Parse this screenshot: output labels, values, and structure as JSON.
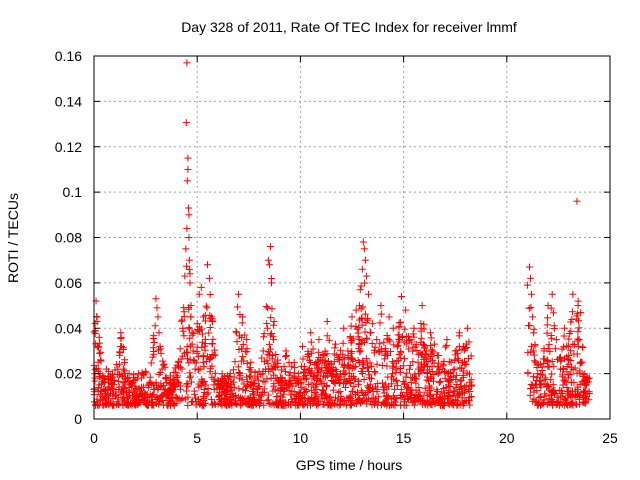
{
  "chart_data": {
    "type": "scatter",
    "title": "Day 328 of 2011, Rate Of TEC Index for receiver lmmf",
    "xlabel": "GPS time / hours",
    "ylabel": "ROTI / TECUs",
    "xlim": [
      0,
      25
    ],
    "ylim": [
      0,
      0.16
    ],
    "xticks": [
      "0",
      "5",
      "10",
      "15",
      "20",
      "25"
    ],
    "yticks": [
      "0",
      "0.02",
      "0.04",
      "0.06",
      "0.08",
      "0.1",
      "0.12",
      "0.14",
      "0.16"
    ],
    "grid": true,
    "marker": "+",
    "color": "#ff0000",
    "coverage": [
      [
        0,
        18.3
      ],
      [
        21.0,
        24.0
      ]
    ],
    "series": [
      {
        "x": [
          0.0,
          0.05,
          0.1,
          0.15,
          0.2,
          0.25,
          0.3,
          0.35,
          0.4,
          0.5,
          0.6,
          0.7,
          0.8,
          0.9,
          1.0,
          1.1,
          1.2,
          1.3,
          1.5,
          1.7,
          1.9,
          2.1,
          2.3,
          2.5,
          2.7,
          2.9,
          3.0,
          3.05,
          3.1,
          3.15,
          3.2,
          3.3,
          3.5,
          3.7,
          3.9,
          4.1,
          4.3,
          4.4,
          4.45,
          4.5,
          4.5,
          4.52,
          4.55,
          4.55,
          4.58,
          4.6,
          4.6,
          4.62,
          4.65,
          4.65,
          4.7,
          4.7,
          4.75,
          4.8,
          4.9,
          5.0,
          5.1,
          5.2,
          5.3,
          5.4,
          5.5,
          5.6,
          5.7,
          5.8,
          6.0,
          6.2,
          6.4,
          6.6,
          6.8,
          7.0,
          7.2,
          7.4,
          7.6,
          7.8,
          8.0,
          8.2,
          8.4,
          8.45,
          8.5,
          8.55,
          8.6,
          8.7,
          8.9,
          9.1,
          9.3,
          9.5,
          9.7,
          9.9,
          10.1,
          10.3,
          10.5,
          10.7,
          10.9,
          11.1,
          11.3,
          11.5,
          11.7,
          11.9,
          12.1,
          12.3,
          12.5,
          12.7,
          12.9,
          13.0,
          13.05,
          13.1,
          13.15,
          13.2,
          13.3,
          13.5,
          13.7,
          13.9,
          14.1,
          14.3,
          14.5,
          14.7,
          14.9,
          15.1,
          15.3,
          15.5,
          15.7,
          15.9,
          16.1,
          16.3,
          16.5,
          16.7,
          16.9,
          17.1,
          17.3,
          17.5,
          17.7,
          17.9,
          18.1,
          18.3,
          21.0,
          21.1,
          21.15,
          21.2,
          21.25,
          21.3,
          21.4,
          21.5,
          21.6,
          21.8,
          22.0,
          22.2,
          22.4,
          22.6,
          22.8,
          23.0,
          23.2,
          23.4,
          23.45,
          23.5,
          23.6,
          23.8,
          24.0
        ],
        "y": [
          0.013,
          0.018,
          0.052,
          0.043,
          0.025,
          0.015,
          0.02,
          0.012,
          0.01,
          0.016,
          0.022,
          0.014,
          0.019,
          0.011,
          0.017,
          0.024,
          0.013,
          0.038,
          0.015,
          0.02,
          0.012,
          0.018,
          0.014,
          0.021,
          0.016,
          0.013,
          0.053,
          0.049,
          0.045,
          0.038,
          0.032,
          0.022,
          0.016,
          0.019,
          0.014,
          0.025,
          0.04,
          0.063,
          0.075,
          0.084,
          0.157,
          0.105,
          0.115,
          0.11,
          0.093,
          0.09,
          0.08,
          0.07,
          0.064,
          0.06,
          0.05,
          0.045,
          0.038,
          0.03,
          0.022,
          0.042,
          0.055,
          0.058,
          0.045,
          0.035,
          0.068,
          0.062,
          0.045,
          0.028,
          0.017,
          0.015,
          0.012,
          0.02,
          0.014,
          0.055,
          0.045,
          0.035,
          0.025,
          0.018,
          0.021,
          0.03,
          0.04,
          0.07,
          0.068,
          0.076,
          0.06,
          0.035,
          0.023,
          0.018,
          0.03,
          0.015,
          0.025,
          0.02,
          0.032,
          0.018,
          0.038,
          0.024,
          0.035,
          0.028,
          0.043,
          0.02,
          0.033,
          0.026,
          0.04,
          0.03,
          0.045,
          0.048,
          0.057,
          0.066,
          0.078,
          0.075,
          0.07,
          0.063,
          0.055,
          0.042,
          0.035,
          0.05,
          0.028,
          0.045,
          0.04,
          0.032,
          0.054,
          0.048,
          0.035,
          0.04,
          0.025,
          0.05,
          0.03,
          0.038,
          0.033,
          0.028,
          0.022,
          0.035,
          0.025,
          0.03,
          0.038,
          0.032,
          0.04,
          0.015,
          0.059,
          0.067,
          0.062,
          0.055,
          0.045,
          0.038,
          0.025,
          0.02,
          0.015,
          0.03,
          0.05,
          0.055,
          0.035,
          0.022,
          0.04,
          0.028,
          0.055,
          0.096,
          0.05,
          0.035,
          0.025,
          0.012,
          0.018
        ]
      }
    ]
  }
}
